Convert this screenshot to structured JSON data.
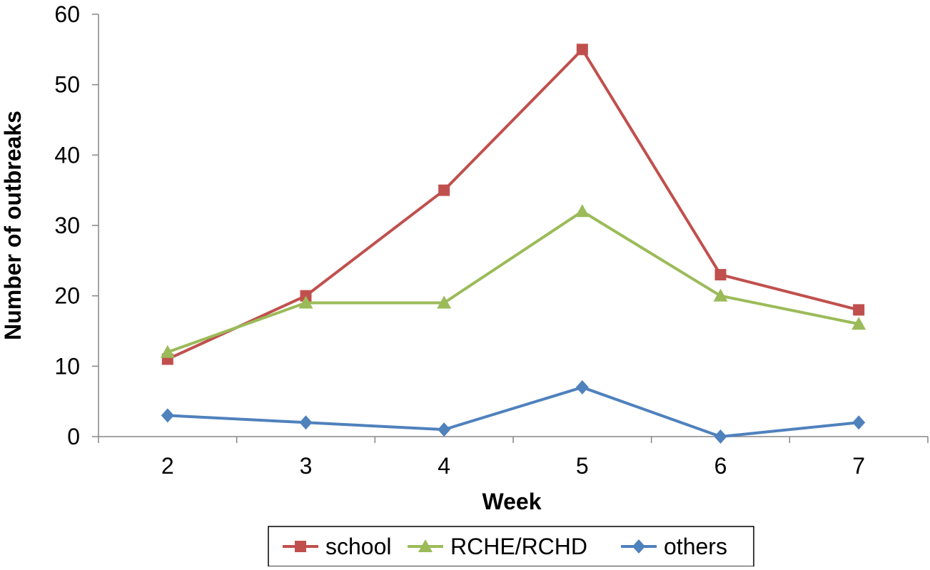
{
  "chart_data": {
    "type": "line",
    "title": "",
    "xlabel": "Week",
    "ylabel": "Number of outbreaks",
    "categories": [
      "2",
      "3",
      "4",
      "5",
      "6",
      "7"
    ],
    "ylim": [
      0,
      60
    ],
    "yticks": [
      "0",
      "10",
      "20",
      "30",
      "40",
      "50",
      "60"
    ],
    "grid": false,
    "legend_position": "bottom",
    "series": [
      {
        "name": "school",
        "values": [
          11,
          20,
          35,
          55,
          23,
          18
        ],
        "color": "#c0504d",
        "marker": "square"
      },
      {
        "name": "RCHE/RCHD",
        "values": [
          12,
          19,
          19,
          32,
          20,
          16
        ],
        "color": "#9bbb59",
        "marker": "triangle"
      },
      {
        "name": "others",
        "values": [
          3,
          2,
          1,
          7,
          0,
          2
        ],
        "color": "#4f81bd",
        "marker": "diamond"
      }
    ]
  }
}
